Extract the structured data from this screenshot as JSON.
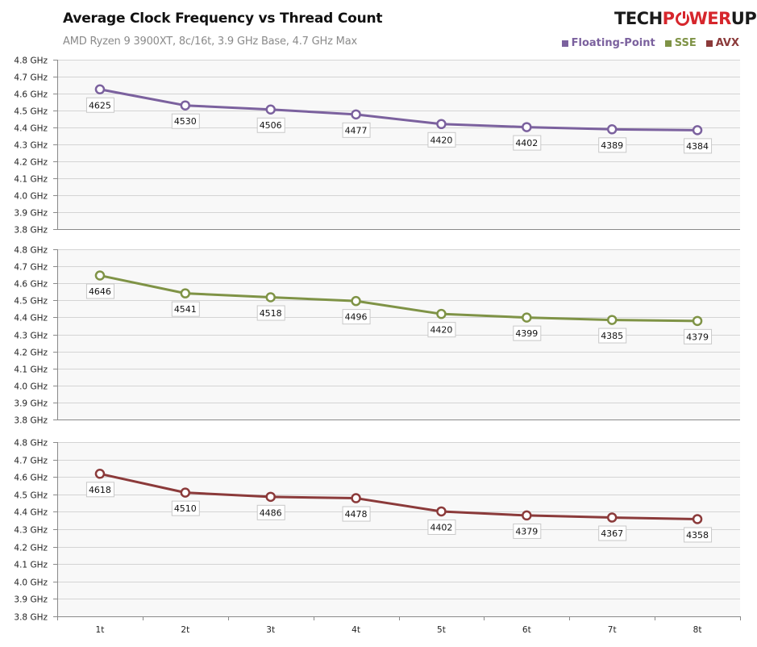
{
  "header": {
    "title": "Average Clock Frequency vs Thread Count",
    "subtitle": "AMD Ryzen 9 3900XT, 8c/16t, 3.9 GHz Base, 4.7 GHz Max",
    "logo": {
      "part1": "TECH",
      "part2": "P",
      "part3": "WER",
      "part4": "UP"
    }
  },
  "chart_data": {
    "type": "line",
    "title": "Average Clock Frequency vs Thread Count",
    "subtitle": "AMD Ryzen 9 3900XT, 8c/16t, 3.9 GHz Base, 4.7 GHz Max",
    "xlabel": "",
    "ylabel": "",
    "categories": [
      "1t",
      "2t",
      "3t",
      "4t",
      "5t",
      "6t",
      "7t",
      "8t"
    ],
    "ylim": [
      3.8,
      4.8
    ],
    "yticks": [
      "4.8 GHz",
      "4.7 GHz",
      "4.6 GHz",
      "4.5 GHz",
      "4.4 GHz",
      "4.3 GHz",
      "4.2 GHz",
      "4.1 GHz",
      "4.0 GHz",
      "3.9 GHz",
      "3.8 GHz"
    ],
    "ytick_values": [
      4.8,
      4.7,
      4.6,
      4.5,
      4.4,
      4.3,
      4.2,
      4.1,
      4.0,
      3.9,
      3.8
    ],
    "grid": true,
    "legend_position": "top-right",
    "layout": "three stacked panels, one per series",
    "units": "MHz",
    "series": [
      {
        "name": "Floating-Point",
        "color": "#7b619e",
        "values": [
          4625,
          4530,
          4506,
          4477,
          4420,
          4402,
          4389,
          4384
        ]
      },
      {
        "name": "SSE",
        "color": "#7f9346",
        "values": [
          4646,
          4541,
          4518,
          4496,
          4420,
          4399,
          4385,
          4379
        ]
      },
      {
        "name": "AVX",
        "color": "#8b3a3a",
        "values": [
          4618,
          4510,
          4486,
          4478,
          4402,
          4379,
          4367,
          4358
        ]
      }
    ]
  },
  "colors": {
    "plot_background": "#f8f8f8",
    "gridline": "#d4d4d4",
    "axis": "#8a8a8a"
  }
}
